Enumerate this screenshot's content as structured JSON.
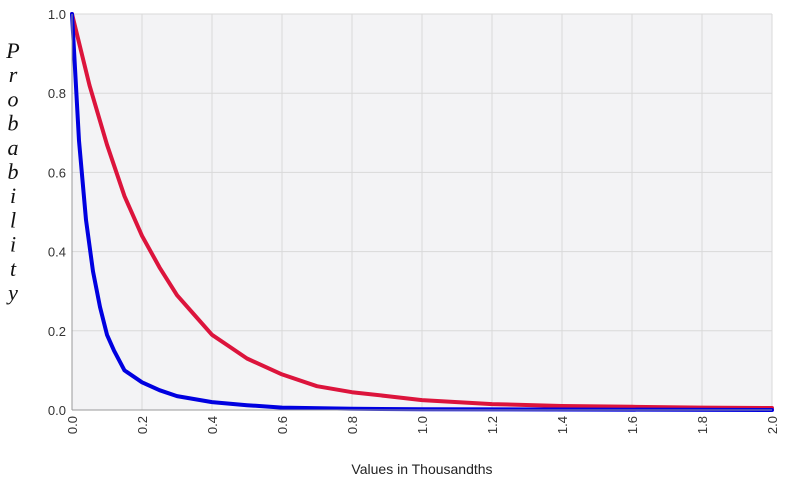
{
  "chart_data": {
    "type": "line",
    "title": "",
    "xlabel": "Values in Thousandths",
    "ylabel": "Probability",
    "xlim": [
      0,
      2.0
    ],
    "ylim": [
      0,
      1.0
    ],
    "x_ticks": [
      "0.0",
      "0.2",
      "0.4",
      "0.6",
      "0.8",
      "1.0",
      "1.2",
      "1.4",
      "1.6",
      "1.8",
      "2.0"
    ],
    "y_ticks": [
      "0.0",
      "0.2",
      "0.4",
      "0.6",
      "0.8",
      "1.0"
    ],
    "grid": true,
    "colors": {
      "plot_background": "#f3f3f5",
      "grid": "#d9d9d9"
    },
    "series": [
      {
        "color": "#dc143c",
        "x": [
          0,
          0.05,
          0.1,
          0.15,
          0.2,
          0.25,
          0.3,
          0.35,
          0.4,
          0.45,
          0.5,
          0.6,
          0.7,
          0.8,
          0.9,
          1.0,
          1.2,
          1.4,
          1.6,
          1.8,
          2.0
        ],
        "y": [
          1.0,
          0.82,
          0.67,
          0.54,
          0.44,
          0.36,
          0.29,
          0.24,
          0.19,
          0.16,
          0.13,
          0.09,
          0.06,
          0.045,
          0.035,
          0.025,
          0.015,
          0.01,
          0.008,
          0.006,
          0.005
        ]
      },
      {
        "color": "#0000e0",
        "x": [
          0,
          0.02,
          0.04,
          0.06,
          0.08,
          0.1,
          0.12,
          0.15,
          0.2,
          0.25,
          0.3,
          0.4,
          0.5,
          0.6,
          0.8,
          1.0,
          1.5,
          2.0
        ],
        "y": [
          1.0,
          0.68,
          0.48,
          0.35,
          0.26,
          0.19,
          0.15,
          0.1,
          0.07,
          0.05,
          0.035,
          0.02,
          0.012,
          0.006,
          0.003,
          0.002,
          0.001,
          0.0
        ]
      }
    ]
  }
}
